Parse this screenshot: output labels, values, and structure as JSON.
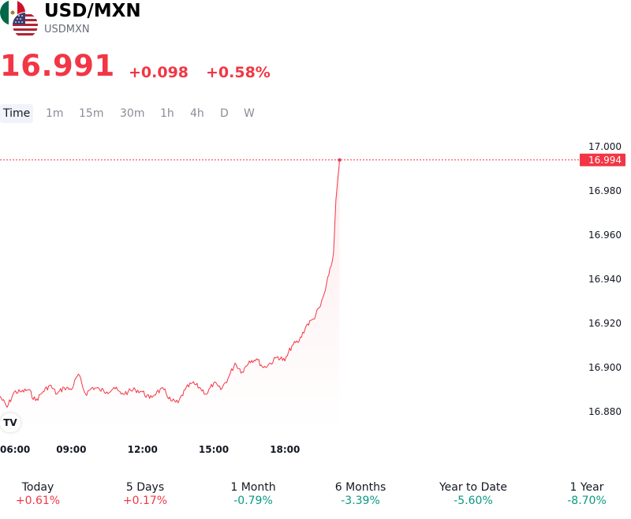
{
  "header": {
    "symbol_title": "USD/MXN",
    "symbol_code": "USDMXN",
    "price": "16.991",
    "change": "+0.098",
    "change_percent": "+0.58%"
  },
  "colors": {
    "down_red": "#f23645",
    "up_green": "#089981",
    "line": "#f23645"
  },
  "tabs": [
    {
      "label": "Time",
      "active": true
    },
    {
      "label": "1m"
    },
    {
      "label": "15m"
    },
    {
      "label": "30m"
    },
    {
      "label": "1h"
    },
    {
      "label": "4h"
    },
    {
      "label": "D"
    },
    {
      "label": "W"
    }
  ],
  "chart_data": {
    "type": "area",
    "x_ticks": [
      "06:00",
      "09:00",
      "12:00",
      "15:00",
      "18:00"
    ],
    "y_ticks": [
      "17.000",
      "16.980",
      "16.960",
      "16.940",
      "16.920",
      "16.900",
      "16.880"
    ],
    "ylim": [
      16.869,
      17.006
    ],
    "last_value_label": "16.994",
    "last_value": 16.994,
    "x_unit": "hours",
    "x_range": [
      6.0,
      20.3
    ],
    "x": [
      6.0,
      6.3,
      6.6,
      6.9,
      7.2,
      7.5,
      7.8,
      8.1,
      8.4,
      8.7,
      9.0,
      9.3,
      9.6,
      9.9,
      10.2,
      10.5,
      10.8,
      11.1,
      11.4,
      11.7,
      12.0,
      12.3,
      12.6,
      12.9,
      13.2,
      13.5,
      13.8,
      14.1,
      14.4,
      14.7,
      15.0,
      15.3,
      15.6,
      15.9,
      16.2,
      16.5,
      16.8,
      17.1,
      17.4,
      17.7,
      18.0,
      18.3,
      18.6,
      18.9,
      19.2,
      19.5,
      19.7,
      19.85,
      19.95,
      20.05,
      20.15,
      20.25,
      20.3
    ],
    "y": [
      16.887,
      16.882,
      16.889,
      16.889,
      16.89,
      16.885,
      16.889,
      16.892,
      16.888,
      16.891,
      16.89,
      16.897,
      16.888,
      16.891,
      16.89,
      16.889,
      16.891,
      16.888,
      16.889,
      16.89,
      16.889,
      16.886,
      16.889,
      16.89,
      16.885,
      16.884,
      16.89,
      16.893,
      16.891,
      16.888,
      16.893,
      16.89,
      16.895,
      16.902,
      16.898,
      16.903,
      16.904,
      16.9,
      16.902,
      16.905,
      16.903,
      16.91,
      16.912,
      16.919,
      16.922,
      16.928,
      16.935,
      16.942,
      16.946,
      16.952,
      16.976,
      16.988,
      16.994
    ]
  },
  "performance": [
    {
      "label": "Today",
      "value": "+0.61%",
      "dir": "up"
    },
    {
      "label": "5 Days",
      "value": "+0.17%",
      "dir": "up"
    },
    {
      "label": "1 Month",
      "value": "-0.79%",
      "dir": "down"
    },
    {
      "label": "6 Months",
      "value": "-3.39%",
      "dir": "down"
    },
    {
      "label": "Year to Date",
      "value": "-5.60%",
      "dir": "down"
    },
    {
      "label": "1 Year",
      "value": "-8.70%",
      "dir": "down"
    }
  ]
}
